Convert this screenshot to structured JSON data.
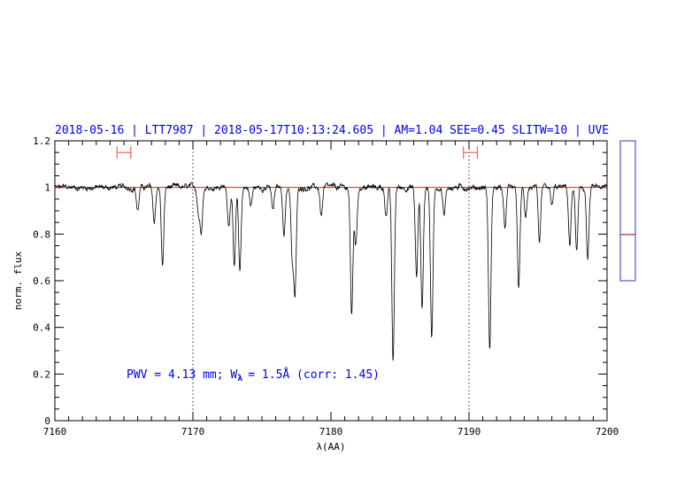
{
  "chart_data": {
    "type": "line",
    "title": "2018-05-16 | LTT7987 | 2018-05-17T10:13:24.605 | AM=1.04  SEE=0.45  SLITW=10 | UVE",
    "xlabel": "λ(AA)",
    "ylabel": "norm. flux",
    "xlim": [
      7160,
      7200
    ],
    "ylim": [
      0,
      1.2
    ],
    "x_ticks": [
      "7160",
      "7170",
      "7180",
      "7190",
      "7200"
    ],
    "y_ticks": [
      "0",
      "0.2",
      "0.4",
      "0.6",
      "0.8",
      "1",
      "1.2"
    ],
    "continuum_level": 1.0,
    "vertical_reference_lines": [
      7170,
      7190
    ],
    "range_markers": [
      {
        "x_start": 7164.5,
        "x_end": 7165.5,
        "y": 1.15
      },
      {
        "x_start": 7189.6,
        "x_end": 7190.6,
        "y": 1.15
      }
    ],
    "absorption_lines": [
      {
        "x": 7166.0,
        "depth": 0.1
      },
      {
        "x": 7167.2,
        "depth": 0.15
      },
      {
        "x": 7167.8,
        "depth": 0.34
      },
      {
        "x": 7170.4,
        "depth": 0.1
      },
      {
        "x": 7170.6,
        "depth": 0.18
      },
      {
        "x": 7172.6,
        "depth": 0.16
      },
      {
        "x": 7173.0,
        "depth": 0.34
      },
      {
        "x": 7173.4,
        "depth": 0.36
      },
      {
        "x": 7174.2,
        "depth": 0.08
      },
      {
        "x": 7175.8,
        "depth": 0.1
      },
      {
        "x": 7176.6,
        "depth": 0.2
      },
      {
        "x": 7177.2,
        "depth": 0.3
      },
      {
        "x": 7177.4,
        "depth": 0.44
      },
      {
        "x": 7179.3,
        "depth": 0.12
      },
      {
        "x": 7181.5,
        "depth": 0.55
      },
      {
        "x": 7181.8,
        "depth": 0.25
      },
      {
        "x": 7184.0,
        "depth": 0.12
      },
      {
        "x": 7184.5,
        "depth": 0.75
      },
      {
        "x": 7186.2,
        "depth": 0.38
      },
      {
        "x": 7186.6,
        "depth": 0.52
      },
      {
        "x": 7187.3,
        "depth": 0.65
      },
      {
        "x": 7188.2,
        "depth": 0.12
      },
      {
        "x": 7191.5,
        "depth": 0.7
      },
      {
        "x": 7192.6,
        "depth": 0.18
      },
      {
        "x": 7193.6,
        "depth": 0.43
      },
      {
        "x": 7194.1,
        "depth": 0.12
      },
      {
        "x": 7195.1,
        "depth": 0.25
      },
      {
        "x": 7196.0,
        "depth": 0.08
      },
      {
        "x": 7197.3,
        "depth": 0.25
      },
      {
        "x": 7197.8,
        "depth": 0.28
      },
      {
        "x": 7198.6,
        "depth": 0.31
      }
    ],
    "noise_amplitude": 0.012,
    "grid": false,
    "colors": {
      "spectrum": "#000000",
      "continuum": "#dd2222",
      "title": "#0000ee",
      "annotation": "#0000ee",
      "range_marker": "#ee4444",
      "side_panel_border": "#3333cc",
      "side_panel_marker": "#aa0000"
    },
    "annotation": {
      "pwv": "PWV = 4.13 mm; W",
      "w_sub": "λ",
      "rest": "= 1.5Å (corr: 1.45)"
    },
    "side_panel": {
      "ylim": [
        0,
        1
      ],
      "marker_level": 0.33
    }
  }
}
